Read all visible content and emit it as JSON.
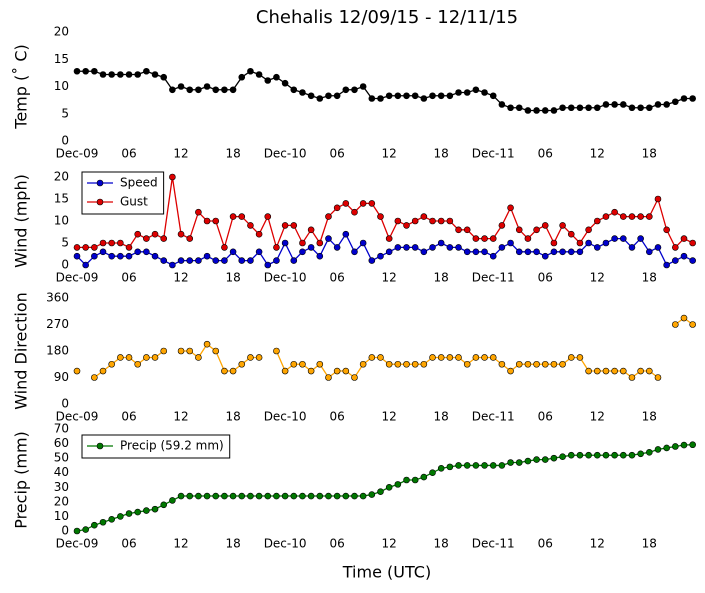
{
  "chart_data": [
    {
      "type": "line",
      "title": "Chehalis 12/09/15 - 12/11/15",
      "ylabel": "Temp (˚ C)",
      "x": [
        0,
        1,
        2,
        3,
        4,
        5,
        6,
        7,
        8,
        9,
        10,
        11,
        12,
        13,
        14,
        15,
        16,
        17,
        18,
        19,
        20,
        21,
        22,
        23,
        24,
        25,
        26,
        27,
        28,
        29,
        30,
        31,
        32,
        33,
        34,
        35,
        36,
        37,
        38,
        39,
        40,
        41,
        42,
        43,
        44,
        45,
        46,
        47,
        48,
        49,
        50,
        51,
        52,
        53,
        54,
        55,
        56,
        57,
        58,
        59,
        60,
        61,
        62,
        63,
        64,
        65,
        66,
        67,
        68,
        69,
        70,
        71
      ],
      "xlim": [
        0,
        71.5
      ],
      "xticks": [
        {
          "value": 0,
          "label": "Dec-09"
        },
        {
          "value": 6,
          "label": "06"
        },
        {
          "value": 12,
          "label": "12"
        },
        {
          "value": 18,
          "label": "18"
        },
        {
          "value": 24,
          "label": "Dec-10"
        },
        {
          "value": 30,
          "label": "06"
        },
        {
          "value": 36,
          "label": "12"
        },
        {
          "value": 42,
          "label": "18"
        },
        {
          "value": 48,
          "label": "Dec-11"
        },
        {
          "value": 54,
          "label": "06"
        },
        {
          "value": 60,
          "label": "12"
        },
        {
          "value": 66,
          "label": "18"
        }
      ],
      "ylim": [
        0,
        20
      ],
      "yticks": [
        0,
        5,
        10,
        15,
        20
      ],
      "series": [
        {
          "color": "#000000",
          "values": [
            12.8,
            12.8,
            12.8,
            12.2,
            12.2,
            12.2,
            12.2,
            12.2,
            12.8,
            12.2,
            11.7,
            9.4,
            10,
            9.4,
            9.4,
            10,
            9.4,
            9.4,
            9.4,
            11.7,
            12.8,
            12.2,
            11.1,
            11.7,
            10.6,
            9.4,
            8.9,
            8.3,
            7.8,
            8.3,
            8.3,
            9.4,
            9.4,
            10,
            7.8,
            7.8,
            8.3,
            8.3,
            8.3,
            8.3,
            7.8,
            8.3,
            8.3,
            8.3,
            8.9,
            8.9,
            9.4,
            8.9,
            8.3,
            6.7,
            6.1,
            6.1,
            5.6,
            5.6,
            5.6,
            5.6,
            6.1,
            6.1,
            6.1,
            6.1,
            6.1,
            6.7,
            6.7,
            6.7,
            6.1,
            6.1,
            6.1,
            6.7,
            6.7,
            7.2,
            7.8,
            7.8
          ]
        }
      ]
    },
    {
      "type": "line",
      "ylabel": "Wind (mph)",
      "x": [
        0,
        1,
        2,
        3,
        4,
        5,
        6,
        7,
        8,
        9,
        10,
        11,
        12,
        13,
        14,
        15,
        16,
        17,
        18,
        19,
        20,
        21,
        22,
        23,
        24,
        25,
        26,
        27,
        28,
        29,
        30,
        31,
        32,
        33,
        34,
        35,
        36,
        37,
        38,
        39,
        40,
        41,
        42,
        43,
        44,
        45,
        46,
        47,
        48,
        49,
        50,
        51,
        52,
        53,
        54,
        55,
        56,
        57,
        58,
        59,
        60,
        61,
        62,
        63,
        64,
        65,
        66,
        67,
        68,
        69,
        70,
        71
      ],
      "xlim": [
        0,
        71.5
      ],
      "xticks": [
        {
          "value": 0,
          "label": "Dec-09"
        },
        {
          "value": 6,
          "label": "06"
        },
        {
          "value": 12,
          "label": "12"
        },
        {
          "value": 18,
          "label": "18"
        },
        {
          "value": 24,
          "label": "Dec-10"
        },
        {
          "value": 30,
          "label": "06"
        },
        {
          "value": 36,
          "label": "12"
        },
        {
          "value": 42,
          "label": "18"
        },
        {
          "value": 48,
          "label": "Dec-11"
        },
        {
          "value": 54,
          "label": "06"
        },
        {
          "value": 60,
          "label": "12"
        },
        {
          "value": 66,
          "label": "18"
        }
      ],
      "ylim": [
        0,
        20
      ],
      "yticks": [
        0,
        5,
        10,
        15,
        20
      ],
      "legend": "upper left",
      "series": [
        {
          "name": "Speed",
          "color": "#0000cc",
          "values": [
            2,
            0,
            2,
            3,
            2,
            2,
            2,
            3,
            3,
            2,
            1,
            0,
            1,
            1,
            1,
            2,
            1,
            1,
            3,
            1,
            1,
            3,
            0,
            1,
            5,
            1,
            3,
            4,
            2,
            6,
            4,
            7,
            3,
            5,
            1,
            2,
            3,
            4,
            4,
            4,
            3,
            4,
            5,
            4,
            4,
            3,
            3,
            3,
            2,
            4,
            5,
            3,
            3,
            3,
            2,
            3,
            3,
            3,
            3,
            5,
            4,
            5,
            6,
            6,
            4,
            6,
            3,
            4,
            0,
            1,
            2,
            1
          ]
        },
        {
          "name": "Gust",
          "color": "#dd0000",
          "values": [
            4,
            4,
            4,
            5,
            5,
            5,
            4,
            7,
            6,
            7,
            6,
            20,
            7,
            6,
            12,
            10,
            10,
            4,
            11,
            11,
            9,
            7,
            11,
            4,
            9,
            9,
            5,
            8,
            5,
            11,
            13,
            14,
            12,
            14,
            14,
            11,
            6,
            10,
            9,
            10,
            11,
            10,
            10,
            10,
            8,
            8,
            6,
            6,
            6,
            9,
            13,
            8,
            6,
            8,
            9,
            5,
            9,
            7,
            5,
            8,
            10,
            11,
            12,
            11,
            11,
            11,
            11,
            15,
            8,
            4,
            6,
            5
          ]
        }
      ]
    },
    {
      "type": "line",
      "ylabel": "Wind Direction",
      "x": [
        0,
        1,
        2,
        3,
        4,
        5,
        6,
        7,
        8,
        9,
        10,
        11,
        12,
        13,
        14,
        15,
        16,
        17,
        18,
        19,
        20,
        21,
        22,
        23,
        24,
        25,
        26,
        27,
        28,
        29,
        30,
        31,
        32,
        33,
        34,
        35,
        36,
        37,
        38,
        39,
        40,
        41,
        42,
        43,
        44,
        45,
        46,
        47,
        48,
        49,
        50,
        51,
        52,
        53,
        54,
        55,
        56,
        57,
        58,
        59,
        60,
        61,
        62,
        63,
        64,
        65,
        66,
        67,
        68,
        69,
        70,
        71
      ],
      "xlim": [
        0,
        71.5
      ],
      "xticks": [
        {
          "value": 0,
          "label": "Dec-09"
        },
        {
          "value": 6,
          "label": "06"
        },
        {
          "value": 12,
          "label": "12"
        },
        {
          "value": 18,
          "label": "18"
        },
        {
          "value": 24,
          "label": "Dec-10"
        },
        {
          "value": 30,
          "label": "06"
        },
        {
          "value": 36,
          "label": "12"
        },
        {
          "value": 42,
          "label": "18"
        },
        {
          "value": 48,
          "label": "Dec-11"
        },
        {
          "value": 54,
          "label": "06"
        },
        {
          "value": 60,
          "label": "12"
        },
        {
          "value": 66,
          "label": "18"
        }
      ],
      "ylim": [
        0,
        360
      ],
      "yticks": [
        0,
        90,
        180,
        270,
        360
      ],
      "series": [
        {
          "color": "#ffa500",
          "values": [
            112,
            null,
            90,
            112,
            135,
            158,
            158,
            135,
            158,
            158,
            180,
            null,
            180,
            180,
            158,
            203,
            180,
            112,
            112,
            135,
            158,
            158,
            null,
            180,
            112,
            135,
            135,
            112,
            135,
            90,
            112,
            112,
            90,
            135,
            158,
            158,
            135,
            135,
            135,
            135,
            135,
            158,
            158,
            158,
            158,
            135,
            158,
            158,
            158,
            135,
            112,
            135,
            135,
            135,
            135,
            135,
            135,
            158,
            158,
            112,
            112,
            112,
            112,
            112,
            90,
            112,
            112,
            90,
            null,
            270,
            292,
            270
          ]
        }
      ]
    },
    {
      "type": "line",
      "ylabel": "Precip (mm)",
      "xlabel": "Time (UTC)",
      "x": [
        0,
        1,
        2,
        3,
        4,
        5,
        6,
        7,
        8,
        9,
        10,
        11,
        12,
        13,
        14,
        15,
        16,
        17,
        18,
        19,
        20,
        21,
        22,
        23,
        24,
        25,
        26,
        27,
        28,
        29,
        30,
        31,
        32,
        33,
        34,
        35,
        36,
        37,
        38,
        39,
        40,
        41,
        42,
        43,
        44,
        45,
        46,
        47,
        48,
        49,
        50,
        51,
        52,
        53,
        54,
        55,
        56,
        57,
        58,
        59,
        60,
        61,
        62,
        63,
        64,
        65,
        66,
        67,
        68,
        69,
        70,
        71
      ],
      "xlim": [
        0,
        71.5
      ],
      "xticks": [
        {
          "value": 0,
          "label": "Dec-09"
        },
        {
          "value": 6,
          "label": "06"
        },
        {
          "value": 12,
          "label": "12"
        },
        {
          "value": 18,
          "label": "18"
        },
        {
          "value": 24,
          "label": "Dec-10"
        },
        {
          "value": 30,
          "label": "06"
        },
        {
          "value": 36,
          "label": "12"
        },
        {
          "value": 42,
          "label": "18"
        },
        {
          "value": 48,
          "label": "Dec-11"
        },
        {
          "value": 54,
          "label": "06"
        },
        {
          "value": 60,
          "label": "12"
        },
        {
          "value": 66,
          "label": "18"
        }
      ],
      "ylim": [
        0,
        70
      ],
      "yticks": [
        0,
        10,
        20,
        30,
        40,
        50,
        60,
        70
      ],
      "legend": "upper left",
      "series": [
        {
          "name": "Precip (59.2 mm)",
          "color": "#007700",
          "values": [
            0,
            1,
            4,
            6,
            8,
            10,
            12,
            13,
            14,
            15,
            18,
            21,
            24,
            24,
            24,
            24,
            24,
            24,
            24,
            24,
            24,
            24,
            24,
            24,
            24,
            24,
            24,
            24,
            24,
            24,
            24,
            24,
            24,
            24,
            25,
            27,
            30,
            32,
            35,
            35,
            37,
            40,
            43,
            44,
            45,
            45,
            45,
            45,
            45,
            45,
            47,
            47,
            48,
            49,
            49,
            50,
            51,
            52,
            52,
            52,
            52,
            52,
            52,
            52,
            52,
            53,
            54,
            56,
            57,
            58,
            59,
            59.2
          ]
        }
      ]
    }
  ]
}
